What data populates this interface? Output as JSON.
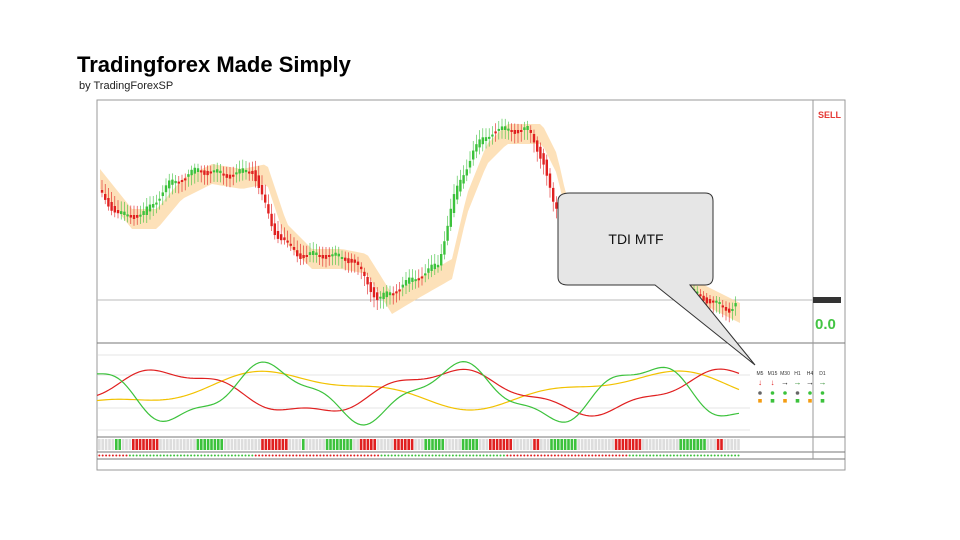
{
  "header": {
    "title": "Tradingforex Made Simply",
    "subtitle": "by TradingForexSP"
  },
  "screenshot": {
    "signal": "SELL",
    "reading": "0.0",
    "callout": "TDI MTF",
    "timeframes": [
      "M5",
      "M15",
      "M30",
      "H1",
      "H4",
      "D1"
    ]
  }
}
